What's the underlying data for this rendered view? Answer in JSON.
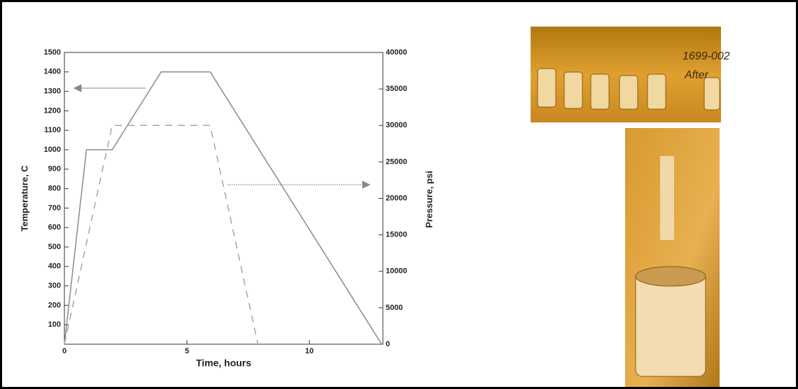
{
  "chart_data": {
    "type": "line",
    "xlabel": "Time, hours",
    "ylabel": "Temperature, C",
    "y2label": "Pressure, psi",
    "xlim": [
      0,
      13
    ],
    "xticks": [
      0,
      5,
      10
    ],
    "ylim": [
      0,
      1500
    ],
    "yticks": [
      100,
      200,
      300,
      400,
      500,
      600,
      700,
      800,
      900,
      1000,
      1100,
      1200,
      1300,
      1400,
      1500
    ],
    "y2lim": [
      0,
      40000
    ],
    "y2ticks": [
      0,
      5000,
      10000,
      15000,
      20000,
      25000,
      30000,
      35000,
      40000
    ],
    "series": [
      {
        "color": "#8a8a8a",
        "dash": false,
        "x": [
          0,
          0.9,
          1.95,
          3.95,
          5.95,
          12.95
        ],
        "values": [
          0,
          1000,
          1000,
          1400,
          1400,
          0
        ]
      },
      {
        "color": "#a0a6b4",
        "dash": true,
        "axis": "y2",
        "x": [
          0,
          1.95,
          5.95,
          7.9
        ],
        "values": [
          0,
          30000,
          30000,
          0
        ]
      }
    ]
  },
  "photo_text": [
    "1699-002",
    "After"
  ]
}
